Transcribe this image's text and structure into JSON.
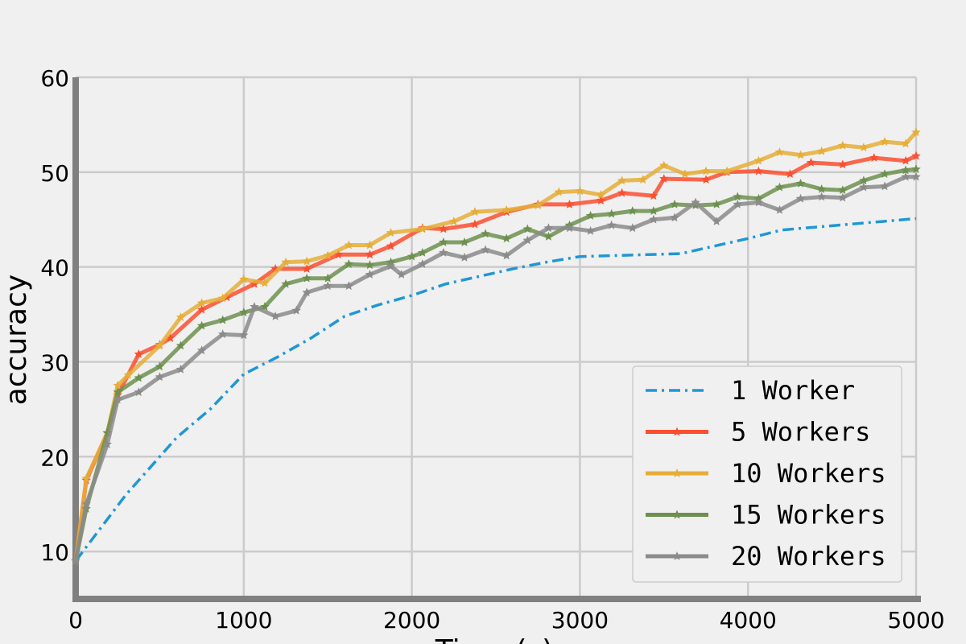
{
  "chart_data": {
    "type": "line",
    "title": "",
    "xlabel": "Time (s)",
    "ylabel": "accuracy",
    "xlim": [
      0,
      5000
    ],
    "ylim": [
      5,
      60
    ],
    "x_ticks": [
      0,
      1000,
      2000,
      3000,
      4000,
      5000
    ],
    "y_ticks": [
      10,
      20,
      30,
      40,
      50,
      60
    ],
    "grid": true,
    "legend_position": "bottom-right",
    "series": [
      {
        "name": "1 Worker",
        "color": "#1f97d4",
        "line_style": "dash-dot",
        "marker": "none",
        "points": [
          [
            0,
            9
          ],
          [
            150,
            12.5
          ],
          [
            300,
            16
          ],
          [
            450,
            19
          ],
          [
            600,
            22
          ],
          [
            800,
            25
          ],
          [
            1000,
            28.7
          ],
          [
            1200,
            30.5
          ],
          [
            1400,
            32.5
          ],
          [
            1600,
            34.8
          ],
          [
            1800,
            36
          ],
          [
            2000,
            37
          ],
          [
            2200,
            38.2
          ],
          [
            2400,
            39
          ],
          [
            2600,
            39.8
          ],
          [
            2800,
            40.5
          ],
          [
            3000,
            41.1
          ],
          [
            3200,
            41.2
          ],
          [
            3400,
            41.3
          ],
          [
            3600,
            41.4
          ],
          [
            3800,
            42.2
          ],
          [
            4000,
            43
          ],
          [
            4200,
            43.9
          ],
          [
            4400,
            44.2
          ],
          [
            4600,
            44.5
          ],
          [
            4800,
            44.8
          ],
          [
            5000,
            45.1
          ]
        ]
      },
      {
        "name": "5 Workers",
        "color": "#fc4f30",
        "line_style": "solid",
        "marker": "star",
        "points": [
          [
            0,
            9
          ],
          [
            63,
            17.5
          ],
          [
            188,
            22.5
          ],
          [
            250,
            26.5
          ],
          [
            375,
            30.8
          ],
          [
            500,
            31.8
          ],
          [
            563,
            32.5
          ],
          [
            750,
            35.5
          ],
          [
            900,
            36.8
          ],
          [
            1063,
            38.2
          ],
          [
            1188,
            39.8
          ],
          [
            1375,
            39.8
          ],
          [
            1563,
            41.3
          ],
          [
            1750,
            41.3
          ],
          [
            1875,
            42.2
          ],
          [
            2063,
            44.1
          ],
          [
            2188,
            44
          ],
          [
            2375,
            44.5
          ],
          [
            2563,
            45.8
          ],
          [
            2750,
            46.6
          ],
          [
            2938,
            46.6
          ],
          [
            3125,
            47
          ],
          [
            3250,
            47.8
          ],
          [
            3438,
            47.5
          ],
          [
            3500,
            49.3
          ],
          [
            3750,
            49.2
          ],
          [
            3875,
            50
          ],
          [
            4063,
            50.1
          ],
          [
            4250,
            49.8
          ],
          [
            4375,
            51
          ],
          [
            4563,
            50.8
          ],
          [
            4750,
            51.5
          ],
          [
            4938,
            51.2
          ],
          [
            5000,
            51.7
          ]
        ]
      },
      {
        "name": "10 Workers",
        "color": "#e5ae38",
        "line_style": "solid",
        "marker": "star",
        "points": [
          [
            0,
            9
          ],
          [
            63,
            17.7
          ],
          [
            188,
            22.5
          ],
          [
            250,
            27.5
          ],
          [
            313,
            28.6
          ],
          [
            500,
            31.7
          ],
          [
            625,
            34.7
          ],
          [
            750,
            36.2
          ],
          [
            875,
            36.7
          ],
          [
            1000,
            38.7
          ],
          [
            1125,
            38.3
          ],
          [
            1250,
            40.5
          ],
          [
            1375,
            40.6
          ],
          [
            1500,
            41.2
          ],
          [
            1625,
            42.3
          ],
          [
            1750,
            42.3
          ],
          [
            1875,
            43.6
          ],
          [
            2063,
            44
          ],
          [
            2250,
            44.8
          ],
          [
            2375,
            45.8
          ],
          [
            2563,
            46
          ],
          [
            2750,
            46.5
          ],
          [
            2875,
            47.9
          ],
          [
            3000,
            48
          ],
          [
            3125,
            47.6
          ],
          [
            3250,
            49.1
          ],
          [
            3375,
            49.2
          ],
          [
            3500,
            50.7
          ],
          [
            3625,
            49.8
          ],
          [
            3750,
            50.1
          ],
          [
            3875,
            50.1
          ],
          [
            4063,
            51.2
          ],
          [
            4188,
            52.1
          ],
          [
            4313,
            51.8
          ],
          [
            4438,
            52.2
          ],
          [
            4563,
            52.8
          ],
          [
            4688,
            52.6
          ],
          [
            4813,
            53.2
          ],
          [
            4938,
            53
          ],
          [
            5000,
            54.2
          ]
        ]
      },
      {
        "name": "15 Workers",
        "color": "#6d904f",
        "line_style": "solid",
        "marker": "star",
        "points": [
          [
            0,
            9
          ],
          [
            63,
            14.5
          ],
          [
            188,
            22.5
          ],
          [
            250,
            26.8
          ],
          [
            375,
            28.3
          ],
          [
            500,
            29.5
          ],
          [
            625,
            31.7
          ],
          [
            750,
            33.8
          ],
          [
            875,
            34.4
          ],
          [
            1000,
            35.2
          ],
          [
            1125,
            35.8
          ],
          [
            1250,
            38.2
          ],
          [
            1375,
            38.8
          ],
          [
            1500,
            38.8
          ],
          [
            1625,
            40.3
          ],
          [
            1750,
            40.2
          ],
          [
            1875,
            40.5
          ],
          [
            2000,
            41.1
          ],
          [
            2063,
            41.5
          ],
          [
            2188,
            42.6
          ],
          [
            2313,
            42.6
          ],
          [
            2438,
            43.5
          ],
          [
            2563,
            43
          ],
          [
            2688,
            44
          ],
          [
            2813,
            43.2
          ],
          [
            2938,
            44.4
          ],
          [
            3063,
            45.4
          ],
          [
            3188,
            45.6
          ],
          [
            3313,
            45.9
          ],
          [
            3438,
            45.9
          ],
          [
            3563,
            46.6
          ],
          [
            3688,
            46.5
          ],
          [
            3813,
            46.6
          ],
          [
            3938,
            47.4
          ],
          [
            4063,
            47.2
          ],
          [
            4188,
            48.4
          ],
          [
            4313,
            48.8
          ],
          [
            4438,
            48.2
          ],
          [
            4563,
            48.1
          ],
          [
            4688,
            49.1
          ],
          [
            4813,
            49.8
          ],
          [
            4938,
            50.2
          ],
          [
            5000,
            50.3
          ]
        ]
      },
      {
        "name": "20 Workers",
        "color": "#8b8b8b",
        "line_style": "solid",
        "marker": "star",
        "points": [
          [
            0,
            9
          ],
          [
            63,
            15
          ],
          [
            188,
            21.3
          ],
          [
            250,
            26
          ],
          [
            375,
            26.8
          ],
          [
            500,
            28.4
          ],
          [
            625,
            29.2
          ],
          [
            750,
            31.2
          ],
          [
            875,
            32.9
          ],
          [
            1000,
            32.8
          ],
          [
            1063,
            35.8
          ],
          [
            1188,
            34.8
          ],
          [
            1313,
            35.4
          ],
          [
            1375,
            37.3
          ],
          [
            1500,
            38
          ],
          [
            1625,
            38
          ],
          [
            1750,
            39.2
          ],
          [
            1875,
            40.1
          ],
          [
            1938,
            39.2
          ],
          [
            2063,
            40.3
          ],
          [
            2188,
            41.5
          ],
          [
            2313,
            41
          ],
          [
            2438,
            41.8
          ],
          [
            2563,
            41.2
          ],
          [
            2688,
            42.8
          ],
          [
            2813,
            44.1
          ],
          [
            2938,
            44.1
          ],
          [
            3063,
            43.8
          ],
          [
            3188,
            44.4
          ],
          [
            3313,
            44.1
          ],
          [
            3438,
            45
          ],
          [
            3563,
            45.2
          ],
          [
            3688,
            46.8
          ],
          [
            3813,
            44.8
          ],
          [
            3938,
            46.6
          ],
          [
            4063,
            46.8
          ],
          [
            4188,
            46
          ],
          [
            4313,
            47.2
          ],
          [
            4438,
            47.4
          ],
          [
            4563,
            47.3
          ],
          [
            4688,
            48.4
          ],
          [
            4813,
            48.5
          ],
          [
            4938,
            49.5
          ],
          [
            5000,
            49.5
          ]
        ]
      }
    ]
  }
}
